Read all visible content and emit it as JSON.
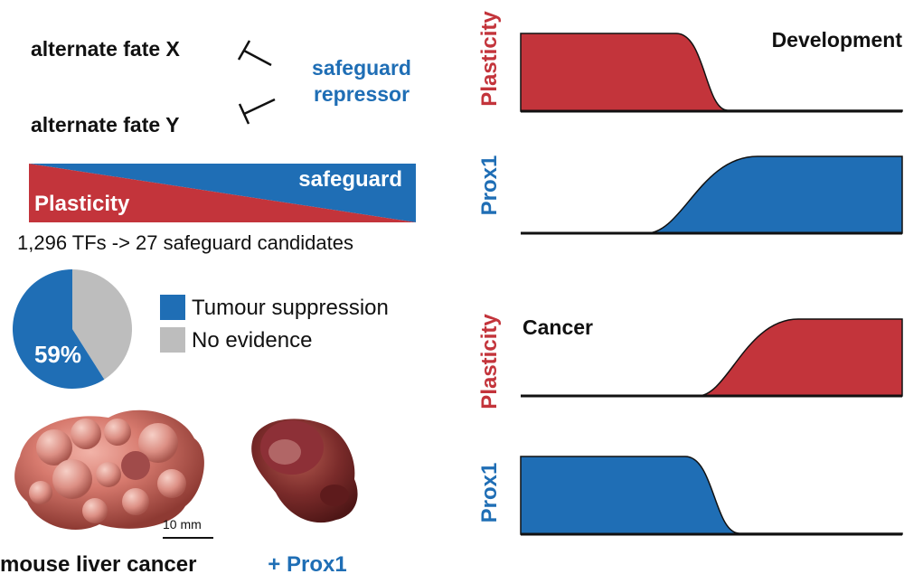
{
  "colors": {
    "red": "#c3343b",
    "blue": "#1f6eb5",
    "gray": "#bdbdbd",
    "black": "#111111"
  },
  "left": {
    "fate_x": "alternate fate X",
    "fate_y": "alternate fate Y",
    "repressor_line1": "safeguard",
    "repressor_line2": "repressor",
    "wedge_plasticity": "Plasticity",
    "wedge_safeguard": "safeguard",
    "tf_text": "1,296 TFs -> 27 safeguard candidates",
    "pie_percent": "59%",
    "legend": [
      {
        "label": "Tumour suppression",
        "color": "#1f6eb5"
      },
      {
        "label": "No evidence",
        "color": "#bdbdbd"
      }
    ],
    "scale_bar": "10 mm",
    "photo_left_caption": "mouse liver cancer",
    "photo_right_caption": "+ Prox1"
  },
  "pie": {
    "tumour_suppression_fraction": 0.59,
    "no_evidence_fraction": 0.41
  },
  "right": {
    "development_label": "Development",
    "cancer_label": "Cancer",
    "panels": [
      {
        "axis_label": "Plasticity",
        "color": "#c3343b",
        "trend": "high-to-low"
      },
      {
        "axis_label": "Prox1",
        "color": "#1f6eb5",
        "trend": "low-to-high"
      },
      {
        "axis_label": "Plasticity",
        "color": "#c3343b",
        "trend": "low-to-high"
      },
      {
        "axis_label": "Prox1",
        "color": "#1f6eb5",
        "trend": "high-to-low"
      }
    ]
  }
}
